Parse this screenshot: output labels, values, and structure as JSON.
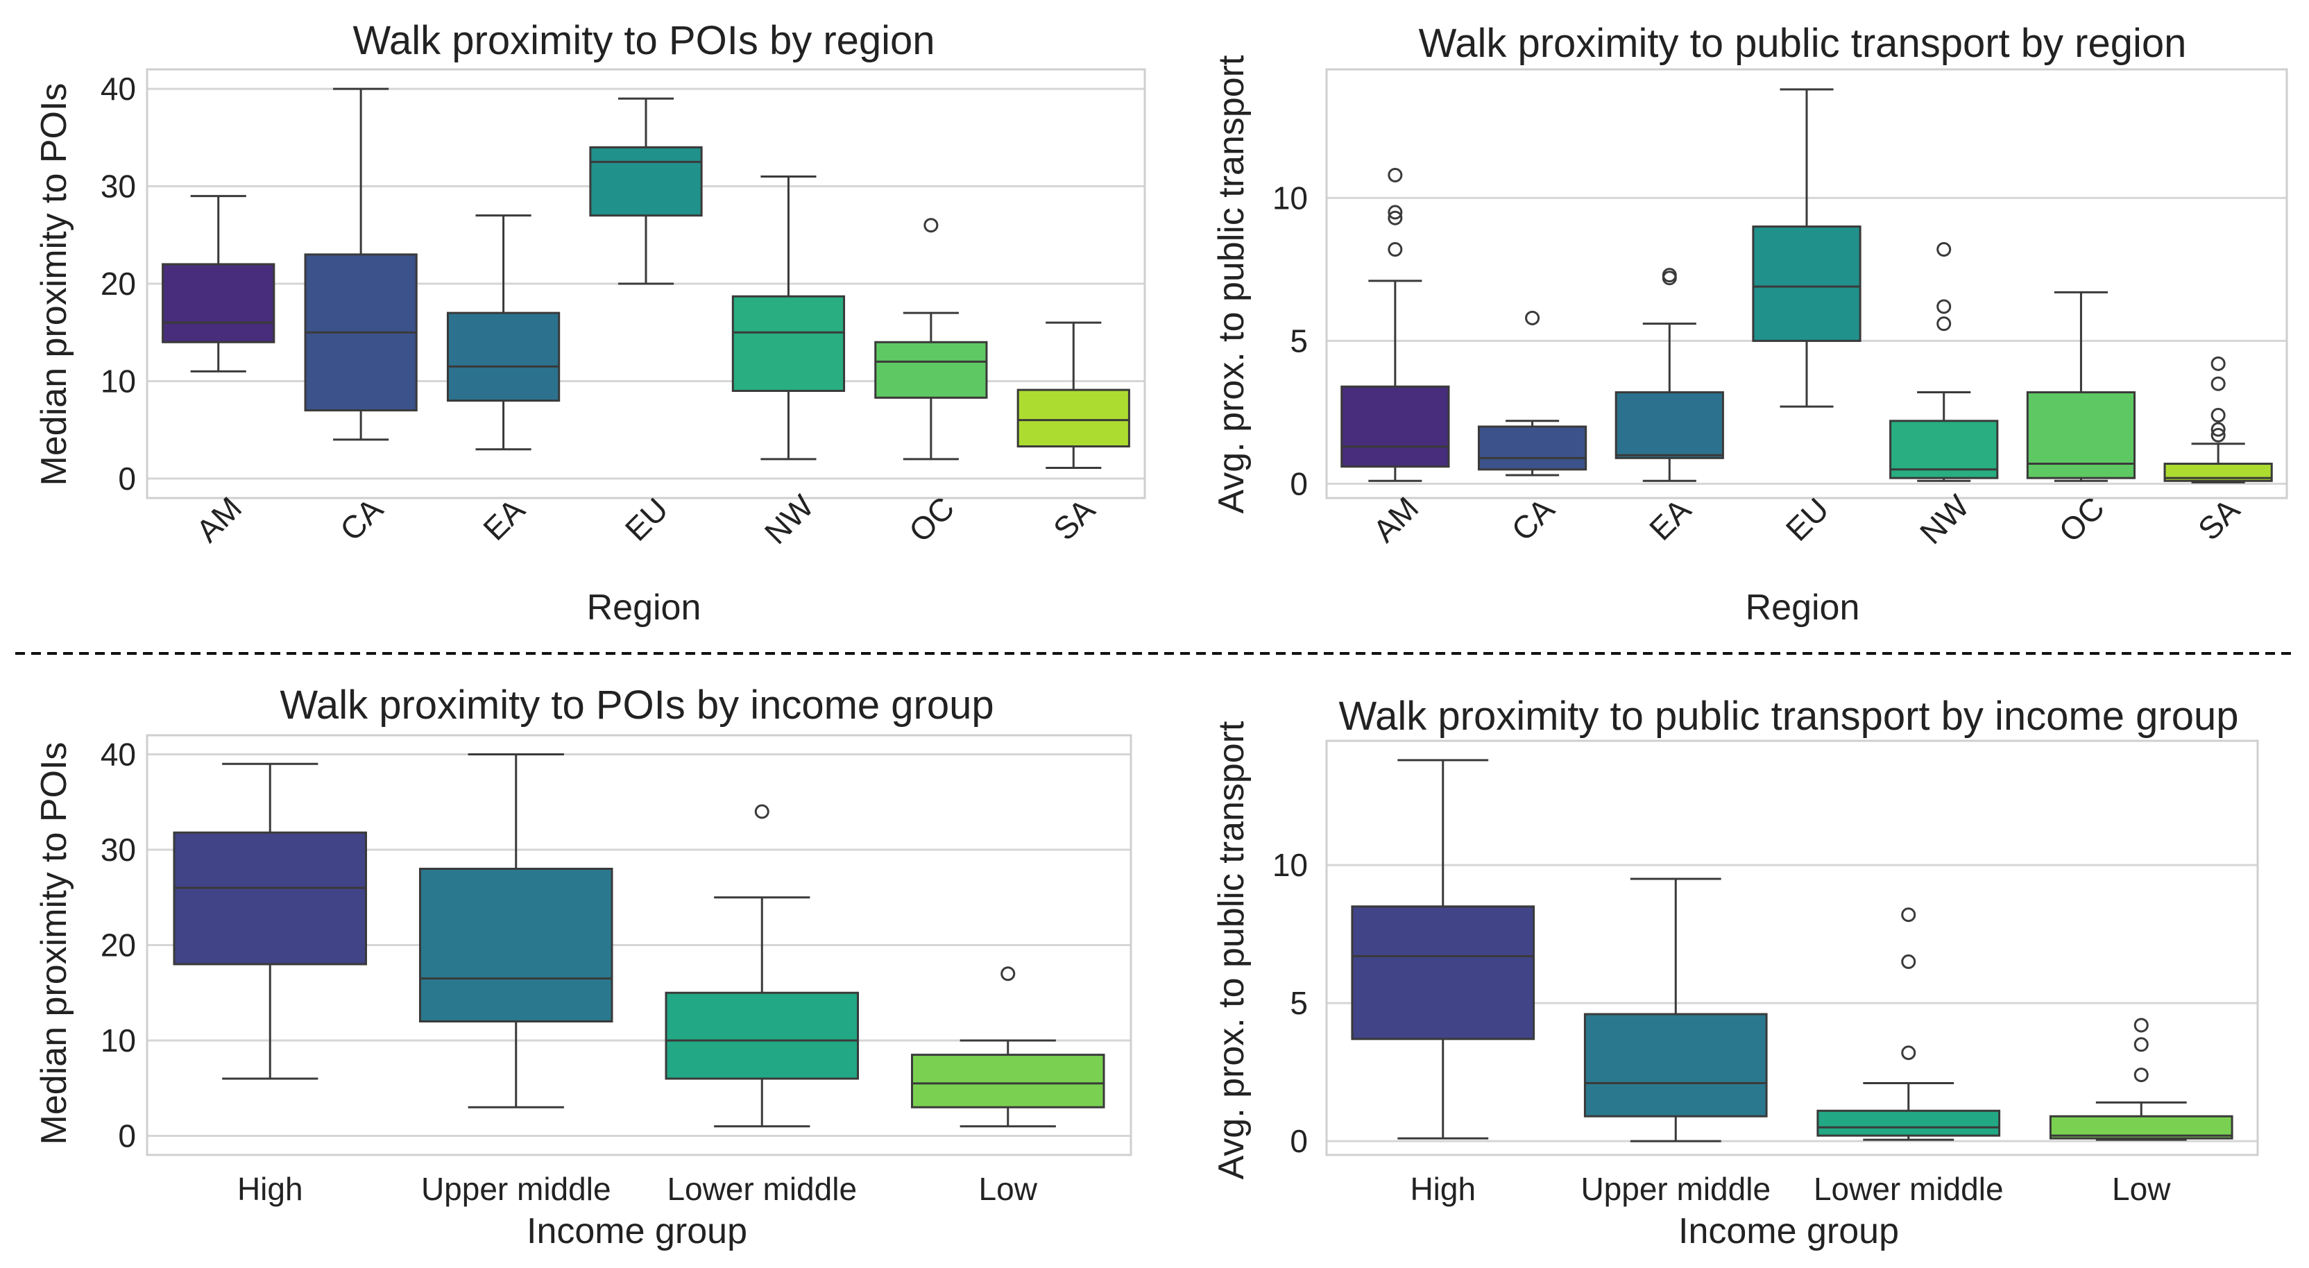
{
  "chart_data": [
    {
      "type": "box",
      "title": "Walk proximity to POIs by region",
      "xlabel": "Region",
      "ylabel": "Median proximity to POIs",
      "ylim": [
        -2,
        42
      ],
      "yticks": [
        0,
        10,
        20,
        30,
        40
      ],
      "grid": true,
      "xtick_rotation": 45,
      "categories": [
        "AM",
        "CA",
        "EA",
        "EU",
        "NW",
        "OC",
        "SA"
      ],
      "colors": [
        "#472d7b",
        "#3b528b",
        "#2c728e",
        "#21918c",
        "#28ae80",
        "#5ec962",
        "#addc30"
      ],
      "boxes": [
        {
          "min": 11,
          "q1": 14,
          "median": 16,
          "q3": 22,
          "max": 29,
          "fliers": []
        },
        {
          "min": 4,
          "q1": 7,
          "median": 15,
          "q3": 23,
          "max": 40,
          "fliers": []
        },
        {
          "min": 3,
          "q1": 8,
          "median": 11.5,
          "q3": 17,
          "max": 27,
          "fliers": []
        },
        {
          "min": 20,
          "q1": 27,
          "median": 32.5,
          "q3": 34,
          "max": 39,
          "fliers": []
        },
        {
          "min": 2,
          "q1": 9,
          "median": 15,
          "q3": 18.7,
          "max": 31,
          "fliers": []
        },
        {
          "min": 2,
          "q1": 8.3,
          "median": 12,
          "q3": 14,
          "max": 17,
          "fliers": [
            26
          ]
        },
        {
          "min": 1.1,
          "q1": 3.3,
          "median": 6,
          "q3": 9.1,
          "max": 16,
          "fliers": []
        }
      ]
    },
    {
      "type": "box",
      "title": "Walk proximity to public transport by region",
      "xlabel": "Region",
      "ylabel": "Avg. prox. to public transport",
      "ylim": [
        -0.5,
        14.5
      ],
      "yticks": [
        0,
        5,
        10
      ],
      "grid": true,
      "xtick_rotation": 45,
      "categories": [
        "AM",
        "CA",
        "EA",
        "EU",
        "NW",
        "OC",
        "SA"
      ],
      "colors": [
        "#472d7b",
        "#3b528b",
        "#2c728e",
        "#21918c",
        "#28ae80",
        "#5ec962",
        "#addc30"
      ],
      "boxes": [
        {
          "min": 0.1,
          "q1": 0.6,
          "median": 1.3,
          "q3": 3.4,
          "max": 7.1,
          "fliers": [
            8.2,
            9.3,
            9.5,
            10.8
          ]
        },
        {
          "min": 0.3,
          "q1": 0.5,
          "median": 0.9,
          "q3": 2.0,
          "max": 2.2,
          "fliers": [
            5.8
          ]
        },
        {
          "min": 0.1,
          "q1": 0.9,
          "median": 1.0,
          "q3": 3.2,
          "max": 5.6,
          "fliers": [
            7.2,
            7.3
          ]
        },
        {
          "min": 2.7,
          "q1": 5.0,
          "median": 6.9,
          "q3": 9.0,
          "max": 13.8,
          "fliers": []
        },
        {
          "min": 0.1,
          "q1": 0.2,
          "median": 0.5,
          "q3": 2.2,
          "max": 3.2,
          "fliers": [
            5.6,
            6.2,
            8.2
          ]
        },
        {
          "min": 0.1,
          "q1": 0.2,
          "median": 0.7,
          "q3": 3.2,
          "max": 6.7,
          "fliers": []
        },
        {
          "min": 0.05,
          "q1": 0.1,
          "median": 0.2,
          "q3": 0.7,
          "max": 1.4,
          "fliers": [
            1.7,
            1.9,
            2.4,
            3.5,
            4.2
          ]
        }
      ]
    },
    {
      "type": "box",
      "title": "Walk proximity to POIs by income group",
      "xlabel": "Income group",
      "ylabel": "Median proximity to POIs",
      "ylim": [
        -2,
        42
      ],
      "yticks": [
        0,
        10,
        20,
        30,
        40
      ],
      "grid": true,
      "xtick_rotation": 0,
      "categories": [
        "High",
        "Upper middle",
        "Lower middle",
        "Low"
      ],
      "colors": [
        "#414487",
        "#2a788e",
        "#22a884",
        "#7ad151"
      ],
      "boxes": [
        {
          "min": 6,
          "q1": 18,
          "median": 26,
          "q3": 31.8,
          "max": 39,
          "fliers": []
        },
        {
          "min": 3,
          "q1": 12,
          "median": 16.5,
          "q3": 28,
          "max": 40,
          "fliers": []
        },
        {
          "min": 1,
          "q1": 6,
          "median": 10,
          "q3": 15,
          "max": 25,
          "fliers": [
            34
          ]
        },
        {
          "min": 1,
          "q1": 3,
          "median": 5.5,
          "q3": 8.5,
          "max": 10,
          "fliers": [
            17
          ]
        }
      ]
    },
    {
      "type": "box",
      "title": "Walk proximity to public transport by income group",
      "xlabel": "Income group",
      "ylabel": "Avg. prox. to public transport",
      "ylim": [
        -0.5,
        14.5
      ],
      "yticks": [
        0,
        5,
        10
      ],
      "grid": true,
      "xtick_rotation": 0,
      "categories": [
        "High",
        "Upper middle",
        "Lower middle",
        "Low"
      ],
      "colors": [
        "#414487",
        "#2a788e",
        "#22a884",
        "#7ad151"
      ],
      "boxes": [
        {
          "min": 0.1,
          "q1": 3.7,
          "median": 6.7,
          "q3": 8.5,
          "max": 13.8,
          "fliers": []
        },
        {
          "min": 0.0,
          "q1": 0.9,
          "median": 2.1,
          "q3": 4.6,
          "max": 9.5,
          "fliers": []
        },
        {
          "min": 0.05,
          "q1": 0.2,
          "median": 0.5,
          "q3": 1.1,
          "max": 2.1,
          "fliers": [
            3.2,
            6.5,
            8.2
          ]
        },
        {
          "min": 0.05,
          "q1": 0.1,
          "median": 0.2,
          "q3": 0.9,
          "max": 1.4,
          "fliers": [
            2.4,
            3.5,
            4.2
          ]
        }
      ]
    }
  ]
}
